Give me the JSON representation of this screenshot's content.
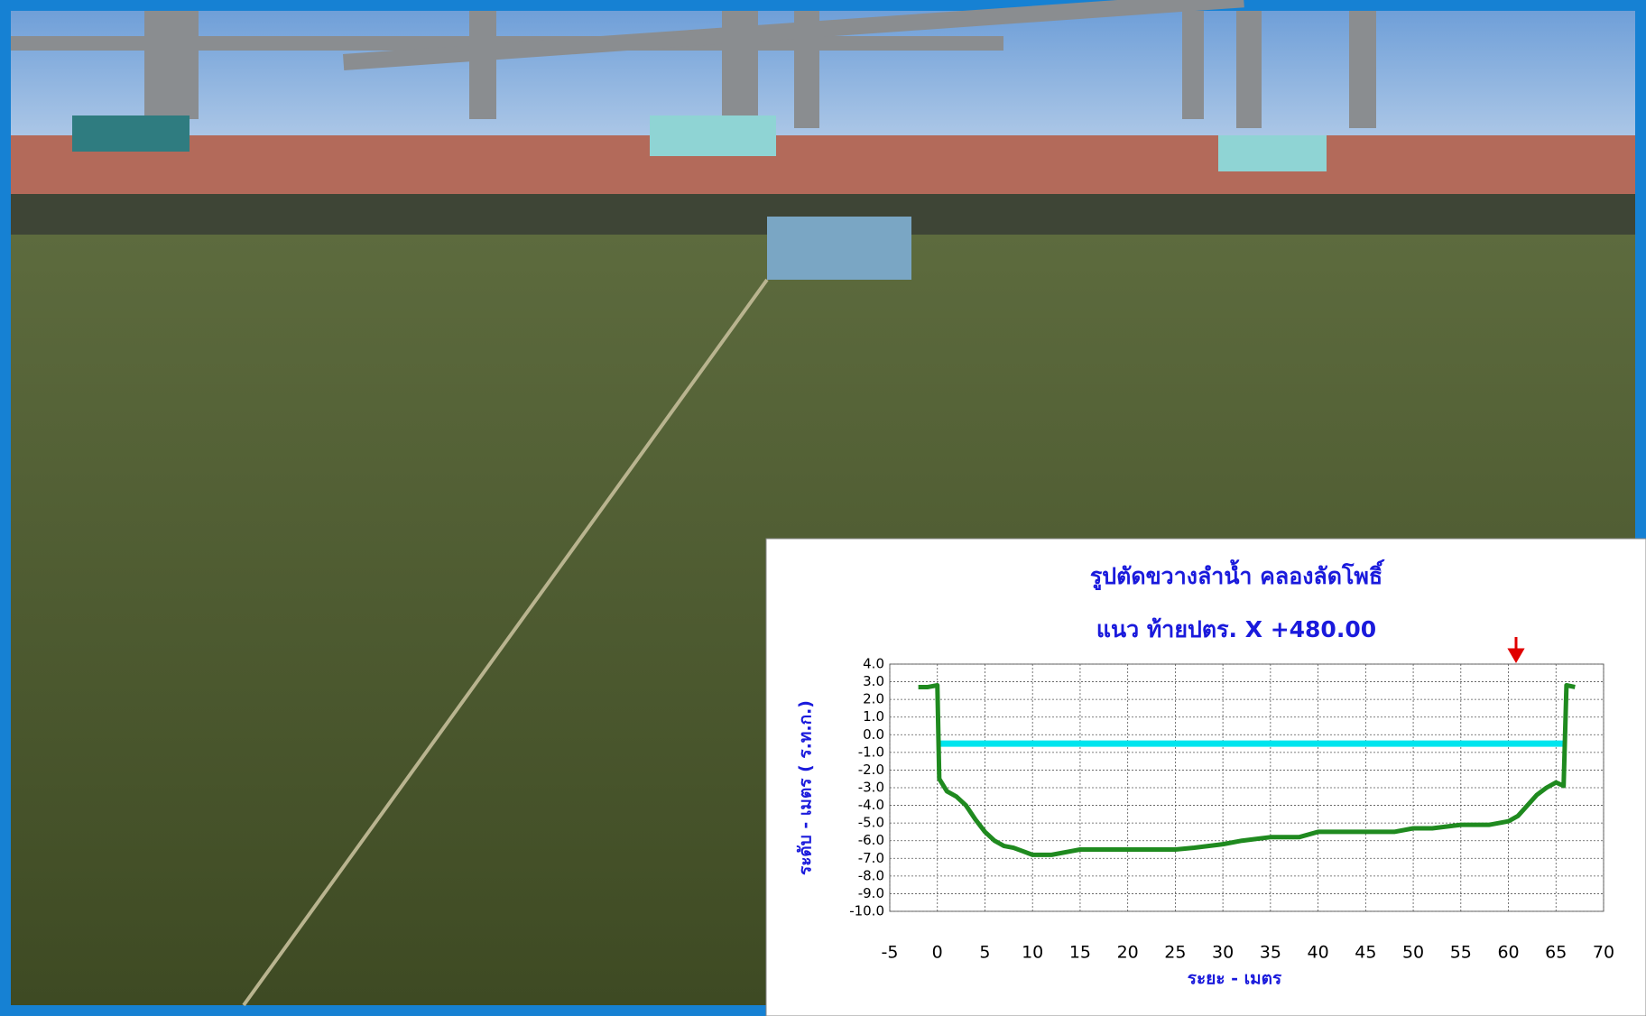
{
  "chart_data": {
    "type": "line",
    "title": "รูปตัดขวางลำน้ำ  คลองลัดโพธิ์",
    "subtitle": "แนว ท้ายปตร. X +480.00",
    "x_label": "ระยะ - เมตร",
    "y_label": "ระดับ - เมตร ( ร.ท.ก.)",
    "xlim": [
      -5,
      70
    ],
    "xticks": [
      -5,
      0,
      5,
      10,
      15,
      20,
      25,
      30,
      35,
      40,
      45,
      50,
      55,
      60,
      65,
      70
    ],
    "ylim": [
      -10,
      4
    ],
    "yticks": [
      {
        "value": 4,
        "label": "4.0"
      },
      {
        "value": 3,
        "label": "3.0"
      },
      {
        "value": 2,
        "label": "2.0"
      },
      {
        "value": 1,
        "label": "1.0"
      },
      {
        "value": 0,
        "label": "0.0"
      },
      {
        "value": -1,
        "label": "-1.0"
      },
      {
        "value": -2,
        "label": "-2.0"
      },
      {
        "value": -3,
        "label": "-3.0"
      },
      {
        "value": -4,
        "label": "-4.0"
      },
      {
        "value": -5,
        "label": "-5.0"
      },
      {
        "value": -6,
        "label": "-6.0"
      },
      {
        "value": -7,
        "label": "-7.0"
      },
      {
        "value": -8,
        "label": "-8.0"
      },
      {
        "value": -9,
        "label": "-9.0"
      },
      {
        "value": -10,
        "label": "-10.0"
      }
    ],
    "grid": true,
    "series": [
      {
        "color": "#00e5ee",
        "width": 7,
        "x": [
          0,
          66
        ],
        "values": [
          -0.5,
          -0.5
        ]
      },
      {
        "color": "#1f8a1f",
        "width": 5,
        "x": [
          -2,
          -1,
          0,
          0.2,
          1,
          2,
          3,
          4,
          5,
          6,
          7,
          8,
          9,
          10,
          12,
          14,
          15,
          20,
          25,
          27,
          30,
          32,
          35,
          38,
          40,
          45,
          48,
          50,
          52,
          55,
          58,
          60,
          61,
          62,
          63,
          64,
          65,
          65.8,
          66.1,
          67
        ],
        "values": [
          2.7,
          2.7,
          2.8,
          -2.5,
          -3.2,
          -3.5,
          -4,
          -4.8,
          -5.5,
          -6,
          -6.3,
          -6.4,
          -6.6,
          -6.8,
          -6.8,
          -6.6,
          -6.5,
          -6.5,
          -6.5,
          -6.4,
          -6.2,
          -6,
          -5.8,
          -5.8,
          -5.5,
          -5.5,
          -5.5,
          -5.3,
          -5.3,
          -5.1,
          -5.1,
          -4.9,
          -4.6,
          -4,
          -3.4,
          -3,
          -2.7,
          -2.9,
          2.8,
          2.7
        ]
      }
    ]
  }
}
